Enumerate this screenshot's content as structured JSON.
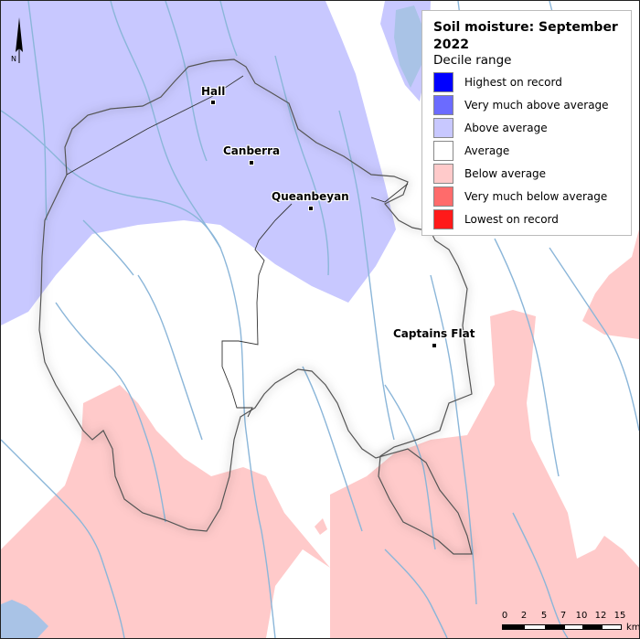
{
  "map": {
    "title": "Soil moisture: September 2022",
    "subtitle": "Decile range",
    "north_label": "N",
    "legend": [
      {
        "label": "Highest on record",
        "color": "#0000ff"
      },
      {
        "label": "Very much above average",
        "color": "#6b6bff"
      },
      {
        "label": "Above average",
        "color": "#c8c8ff"
      },
      {
        "label": "Average",
        "color": "#ffffff"
      },
      {
        "label": "Below average",
        "color": "#ffcaca"
      },
      {
        "label": "Very much below average",
        "color": "#ff6b6b"
      },
      {
        "label": "Lowest on record",
        "color": "#ff1a1a"
      }
    ],
    "places": {
      "hall": "Hall",
      "canberra": "Canberra",
      "queanbeyan": "Queanbeyan",
      "captains_flat": "Captains Flat"
    },
    "scale": {
      "ticks": [
        "0",
        "2",
        "5",
        "7",
        "10",
        "12",
        "15"
      ],
      "unit": "km"
    },
    "colors": {
      "river": "#8bb6d9",
      "water_body": "#a9c3e6"
    }
  }
}
